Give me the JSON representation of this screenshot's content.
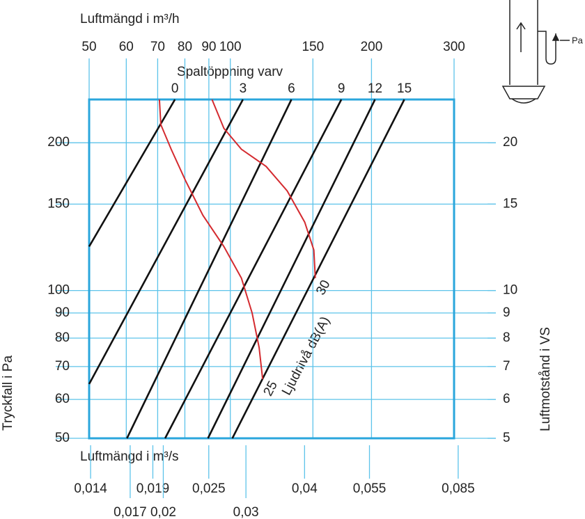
{
  "chart_data": {
    "type": "line",
    "title_top": "Luftmängd i m³/h",
    "title_bottom": "Luftmängd i m³/s",
    "ylabel": "Tryckfall i Pa",
    "y2label": "Luftmotstånd i VS",
    "series_title": "Spaltöppning varv",
    "curve_title": "Ljudnivå dB(A)",
    "icon_label": "Pa",
    "log_scale": true,
    "grid": true,
    "xlim": [
      50,
      300
    ],
    "xticks": [
      50,
      60,
      70,
      80,
      90,
      100,
      150,
      200,
      300
    ],
    "x2lim": [
      0.0139,
      0.0833
    ],
    "x2ticks": [
      {
        "value": 0.014,
        "label": "0,014"
      },
      {
        "value": 0.017,
        "label": "0,017"
      },
      {
        "value": 0.019,
        "label": "0,019"
      },
      {
        "value": 0.02,
        "label": "0,02"
      },
      {
        "value": 0.025,
        "label": "0,025"
      },
      {
        "value": 0.03,
        "label": "0,03"
      },
      {
        "value": 0.04,
        "label": "0,04"
      },
      {
        "value": 0.055,
        "label": "0,055"
      },
      {
        "value": 0.085,
        "label": "0,085"
      }
    ],
    "ylim": [
      50,
      245
    ],
    "yticks": [
      50,
      60,
      70,
      80,
      90,
      100,
      150,
      200
    ],
    "y2lim": [
      5,
      24.5
    ],
    "y2ticks": [
      5,
      6,
      7,
      8,
      9,
      10,
      15,
      20
    ],
    "series": [
      {
        "name": "0",
        "color": "#111111",
        "x": [
          50,
          76.2
        ],
        "values": [
          122.9,
          245
        ]
      },
      {
        "name": "3",
        "color": "#111111",
        "x": [
          50,
          106.4
        ],
        "values": [
          64.5,
          245
        ]
      },
      {
        "name": "6",
        "color": "#111111",
        "x": [
          60.2,
          135
        ],
        "values": [
          50,
          245
        ]
      },
      {
        "name": "9",
        "color": "#111111",
        "x": [
          72.6,
          172.5
        ],
        "values": [
          50,
          245
        ]
      },
      {
        "name": "12",
        "color": "#111111",
        "x": [
          89.6,
          203.5
        ],
        "values": [
          50,
          245
        ]
      },
      {
        "name": "15",
        "color": "#111111",
        "x": [
          101,
          235
        ],
        "values": [
          50,
          245
        ]
      }
    ],
    "curves": [
      {
        "name": "25",
        "color": "#d42a2f",
        "x": [
          70.6,
          71.1,
          74.8,
          80.2,
          87.4,
          96.9,
          105.6,
          111.3,
          115.2,
          117.2
        ],
        "values": [
          245,
          217.7,
          194,
          167.7,
          142.3,
          122.9,
          106,
          90,
          76.5,
          66
        ]
      },
      {
        "name": "30",
        "color": "#d42a2f",
        "x": [
          91.4,
          96.9,
          105.6,
          119.2,
          132.2,
          144.1,
          150.7,
          151.8
        ],
        "values": [
          245,
          214,
          194,
          179,
          159.6,
          137.8,
          120.9,
          106
        ]
      }
    ]
  }
}
